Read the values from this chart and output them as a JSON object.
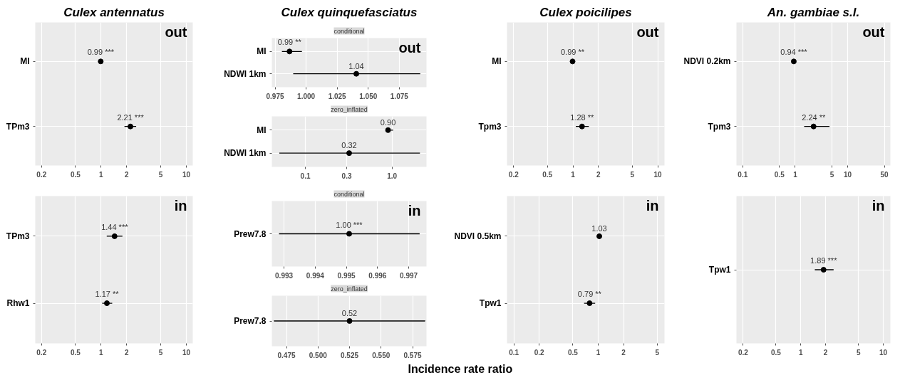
{
  "chart_data": [
    {
      "type": "scatter",
      "orientation": "horizontal",
      "title": "Culex antennatus",
      "categories": [
        "MI",
        "TPm3"
      ],
      "values": [
        0.99,
        2.21
      ],
      "errors": [
        null,
        [
          1.88,
          2.58
        ]
      ],
      "value_labels": [
        "0.99 ***",
        "2.21 ***"
      ],
      "xlim": [
        0.169,
        11.9
      ],
      "xticks": [
        0.2,
        0.5,
        1,
        2,
        5,
        10
      ],
      "log": "x",
      "grid": true,
      "marker": "circle",
      "annotations": [
        "out"
      ]
    },
    {
      "type": "scatter",
      "orientation": "horizontal",
      "categories": [
        "TPm3",
        "Rhw1"
      ],
      "values": [
        1.44,
        1.17
      ],
      "errors": [
        [
          1.165,
          1.78
        ],
        [
          1.03,
          1.35
        ]
      ],
      "value_labels": [
        "1.44 ***",
        "1.17 **"
      ],
      "xlim": [
        0.169,
        11.9
      ],
      "xticks": [
        0.2,
        0.5,
        1,
        2,
        5,
        10
      ],
      "log": "x",
      "grid": true,
      "marker": "circle",
      "annotations": [
        "in"
      ]
    },
    {
      "type": "scatter",
      "orientation": "horizontal",
      "title": "Culex quinquefasciatus",
      "subtitle": "conditional",
      "categories": [
        "MI",
        "NDWI 1km"
      ],
      "values": [
        0.9866,
        1.0404
      ],
      "errors": [
        [
          0.9805,
          0.9966
        ],
        [
          0.9896,
          1.0919
        ]
      ],
      "value_labels": [
        "0.99 **",
        "1.04"
      ],
      "xlim": [
        0.9724,
        1.0969
      ],
      "xticks": [
        0.975,
        {
          "value": 1.0,
          "label": "1.000"
        },
        1.025,
        {
          "value": 1.05,
          "label": "1.050"
        },
        1.075
      ],
      "grid": true,
      "marker": "circle",
      "annotations": [
        "out"
      ]
    },
    {
      "type": "scatter",
      "orientation": "horizontal",
      "subtitle": "zero_inflated",
      "categories": [
        "MI",
        "NDWI 1km"
      ],
      "values": [
        0.9,
        0.32
      ],
      "errors": [
        [
          0.84,
          1.03
        ],
        [
          0.05,
          2.1
        ]
      ],
      "value_labels": [
        "0.90",
        "0.32"
      ],
      "xlim": [
        0.041,
        2.5
      ],
      "xticks": [
        0.1,
        0.3,
        {
          "value": 1,
          "label": "1.0"
        }
      ],
      "log": "x",
      "grid": true,
      "marker": "circle"
    },
    {
      "type": "scatter",
      "orientation": "horizontal",
      "subtitle": "conditional",
      "categories": [
        "Prew7.8"
      ],
      "values": [
        0.99509
      ],
      "errors": [
        [
          0.99284,
          0.99735
        ]
      ],
      "value_labels": [
        "1.00 ***"
      ],
      "xlim": [
        0.99261,
        0.99757
      ],
      "xticks": [
        0.993,
        0.994,
        0.995,
        0.996,
        0.997
      ],
      "grid": true,
      "marker": "circle",
      "annotations": [
        "in"
      ]
    },
    {
      "type": "scatter",
      "orientation": "horizontal",
      "subtitle": "zero_inflated",
      "categories": [
        "Prew7.8"
      ],
      "values": [
        0.525
      ],
      "errors": [
        [
          0.465,
          0.585
        ]
      ],
      "value_labels": [
        "0.52"
      ],
      "xlim": [
        0.4634,
        0.586
      ],
      "xticks": [
        0.475,
        {
          "value": 0.5,
          "label": "0.500"
        },
        0.525,
        {
          "value": 0.55,
          "label": "0.550"
        },
        0.575
      ],
      "grid": true,
      "marker": "circle",
      "xlabel": "Incidence rate ratio"
    },
    {
      "type": "scatter",
      "orientation": "horizontal",
      "title": "Culex poicilipes",
      "categories": [
        "MI",
        "Tpm3"
      ],
      "values": [
        0.99,
        1.28
      ],
      "errors": [
        null,
        [
          1.08,
          1.54
        ]
      ],
      "value_labels": [
        "0.99 **",
        "1.28 **"
      ],
      "xlim": [
        0.167,
        12
      ],
      "xticks": [
        0.2,
        0.5,
        1,
        2,
        5,
        10
      ],
      "log": "x",
      "grid": true,
      "marker": "circle",
      "annotations": [
        "out"
      ]
    },
    {
      "type": "scatter",
      "orientation": "horizontal",
      "categories": [
        "NDVI 0.5km",
        "Tpw1"
      ],
      "values": [
        1.03,
        0.79
      ],
      "errors": [
        null,
        [
          0.68,
          0.92
        ]
      ],
      "value_labels": [
        "1.03",
        "0.79 **"
      ],
      "xlim": [
        0.083,
        6.1
      ],
      "xticks": [
        0.1,
        0.2,
        0.5,
        1,
        2,
        5
      ],
      "log": "x",
      "grid": true,
      "marker": "circle",
      "annotations": [
        "in"
      ]
    },
    {
      "type": "scatter",
      "orientation": "horizontal",
      "title": "An. gambiae s.l.",
      "categories": [
        "NDVI 0.2km",
        "Tpm3"
      ],
      "values": [
        0.94,
        2.24
      ],
      "errors": [
        null,
        [
          1.48,
          4.5
        ]
      ],
      "value_labels": [
        "0.94 ***",
        "2.24 **"
      ],
      "xlim": [
        0.076,
        65
      ],
      "xticks": [
        0.1,
        0.5,
        1,
        5,
        10,
        50
      ],
      "log": "x",
      "grid": true,
      "marker": "circle",
      "annotations": [
        "out"
      ]
    },
    {
      "type": "scatter",
      "orientation": "horizontal",
      "categories": [
        "Tpw1"
      ],
      "values": [
        1.89
      ],
      "errors": [
        [
          1.48,
          2.5
        ]
      ],
      "value_labels": [
        "1.89 ***"
      ],
      "xlim": [
        0.166,
        12.2
      ],
      "xticks": [
        0.2,
        0.5,
        1,
        2,
        5,
        10
      ],
      "log": "x",
      "grid": true,
      "marker": "circle",
      "annotations": [
        "in"
      ]
    }
  ]
}
